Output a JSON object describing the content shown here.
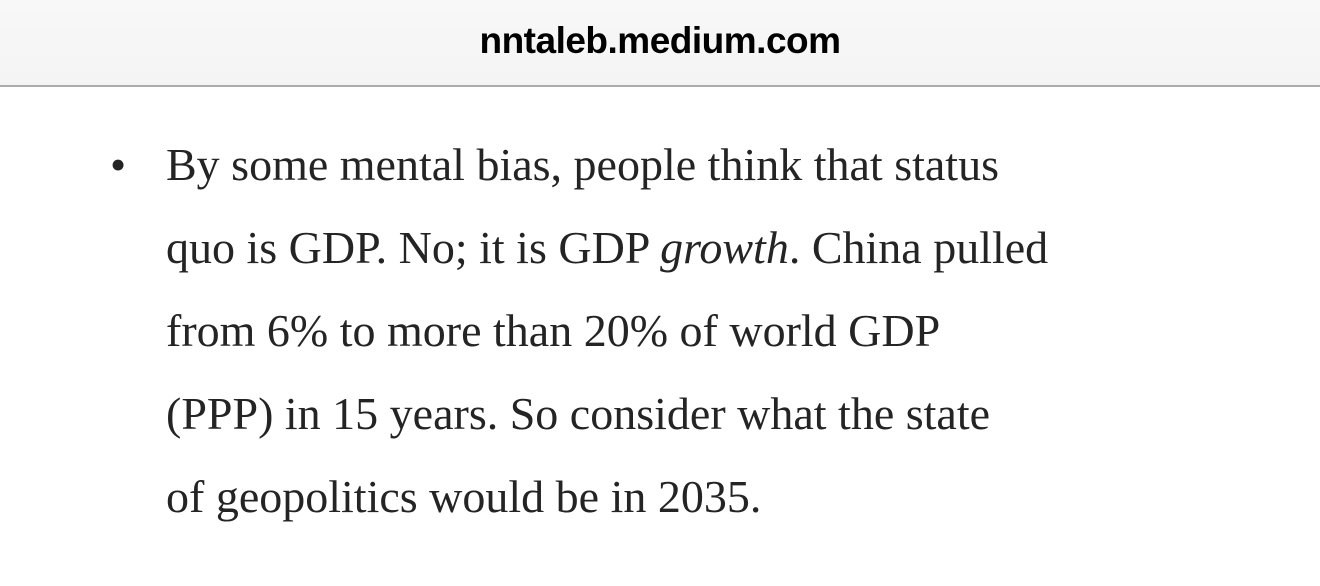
{
  "browser": {
    "url": "nntaleb.medium.com"
  },
  "article": {
    "bullet_marker": "•",
    "line1": "By some mental bias, people think that status",
    "line2_before": "quo is GDP. No; it is GDP ",
    "line2_italic": "growth",
    "line2_after": ". China pulled",
    "line3": "from 6% to more than 20% of world GDP",
    "line4": "(PPP) in 15 years. So consider what the state",
    "line5": "of geopolitics would be in 2035."
  },
  "colors": {
    "chrome_bg": "#f6f6f6",
    "chrome_border": "#acacac",
    "page_bg": "#ffffff",
    "body_text": "#242424",
    "url_text": "#000000"
  }
}
